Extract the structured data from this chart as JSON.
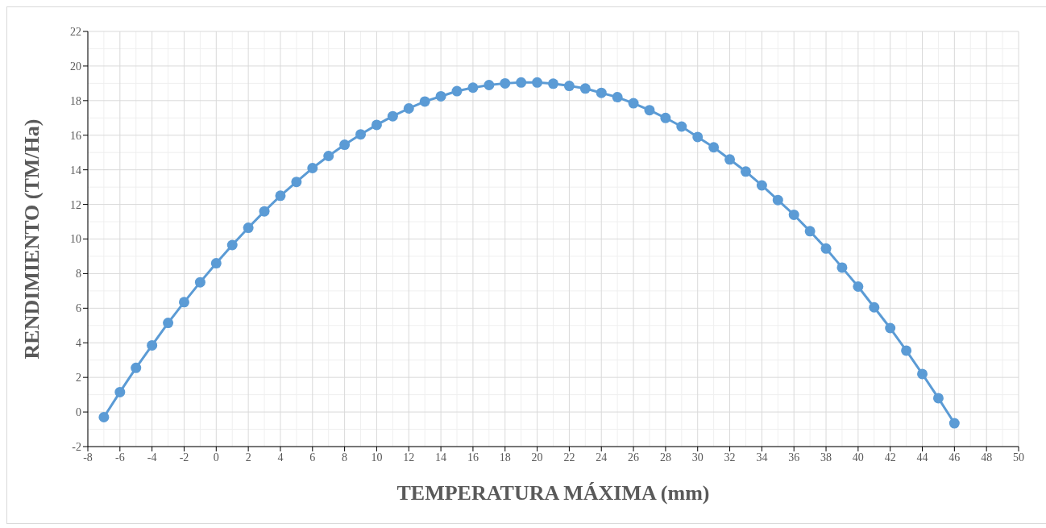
{
  "chart_data": {
    "type": "line",
    "xlabel": "TEMPERATURA MÁXIMA (mm)",
    "ylabel": "RENDIMIENTO (TM/Ha)",
    "x": [
      -7,
      -6,
      -5,
      -4,
      -3,
      -2,
      -1,
      0,
      1,
      2,
      3,
      4,
      5,
      6,
      7,
      8,
      9,
      10,
      11,
      12,
      13,
      14,
      15,
      16,
      17,
      18,
      19,
      20,
      21,
      22,
      23,
      24,
      25,
      26,
      27,
      28,
      29,
      30,
      31,
      32,
      33,
      34,
      35,
      36,
      37,
      38,
      39,
      40,
      41,
      42,
      43,
      44,
      45,
      46
    ],
    "series": [
      {
        "color": "#5b9bd5",
        "values": [
          -0.3,
          1.15,
          2.55,
          3.85,
          5.15,
          6.35,
          7.5,
          8.6,
          9.65,
          10.65,
          11.6,
          12.5,
          13.3,
          14.1,
          14.8,
          15.45,
          16.05,
          16.6,
          17.1,
          17.55,
          17.95,
          18.25,
          18.55,
          18.75,
          18.9,
          19.0,
          19.05,
          19.05,
          18.98,
          18.85,
          18.7,
          18.45,
          18.2,
          17.85,
          17.45,
          17.0,
          16.5,
          15.9,
          15.3,
          14.6,
          13.9,
          13.1,
          12.25,
          11.4,
          10.45,
          9.45,
          8.35,
          7.25,
          6.05,
          4.85,
          3.55,
          2.2,
          0.8,
          -0.65
        ]
      }
    ],
    "xlim": [
      -8,
      50
    ],
    "xticks": [
      -8,
      -6,
      -4,
      -2,
      0,
      2,
      4,
      6,
      8,
      10,
      12,
      14,
      16,
      18,
      20,
      22,
      24,
      26,
      28,
      30,
      32,
      34,
      36,
      38,
      40,
      42,
      44,
      46,
      48,
      50
    ],
    "ylim": [
      -2,
      22
    ],
    "yticks": [
      -2,
      0,
      2,
      4,
      6,
      8,
      10,
      12,
      14,
      16,
      18,
      20,
      22
    ],
    "grid": true,
    "marker": "circle",
    "line_style": "solid",
    "legend": false
  }
}
